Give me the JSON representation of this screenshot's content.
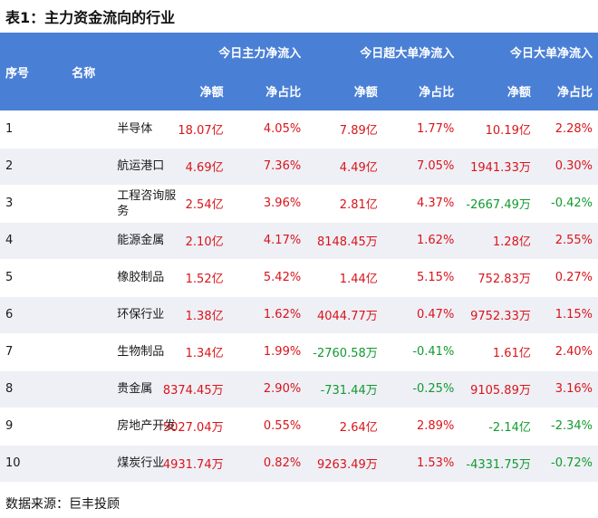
{
  "title": "表1：主力资金流向的行业",
  "header": {
    "idx": "序号",
    "name": "名称",
    "groups": [
      "今日主力净流入",
      "今日超大单净流入",
      "今日大单净流入"
    ],
    "sub_amount": "净额",
    "sub_ratio": "净占比"
  },
  "rows": [
    {
      "idx": "1",
      "name": "半导体",
      "main_amt": "18.07亿",
      "main_pct": "4.05%",
      "xl_amt": "7.89亿",
      "xl_pct": "1.77%",
      "l_amt": "10.19亿",
      "l_pct": "2.28%"
    },
    {
      "idx": "2",
      "name": "航运港口",
      "main_amt": "4.69亿",
      "main_pct": "7.36%",
      "xl_amt": "4.49亿",
      "xl_pct": "7.05%",
      "l_amt": "1941.33万",
      "l_pct": "0.30%"
    },
    {
      "idx": "3",
      "name": "工程咨询服务",
      "main_amt": "2.54亿",
      "main_pct": "3.96%",
      "xl_amt": "2.81亿",
      "xl_pct": "4.37%",
      "l_amt": "-2667.49万",
      "l_pct": "-0.42%"
    },
    {
      "idx": "4",
      "name": "能源金属",
      "main_amt": "2.10亿",
      "main_pct": "4.17%",
      "xl_amt": "8148.45万",
      "xl_pct": "1.62%",
      "l_amt": "1.28亿",
      "l_pct": "2.55%"
    },
    {
      "idx": "5",
      "name": "橡胶制品",
      "main_amt": "1.52亿",
      "main_pct": "5.42%",
      "xl_amt": "1.44亿",
      "xl_pct": "5.15%",
      "l_amt": "752.83万",
      "l_pct": "0.27%"
    },
    {
      "idx": "6",
      "name": "环保行业",
      "main_amt": "1.38亿",
      "main_pct": "1.62%",
      "xl_amt": "4044.77万",
      "xl_pct": "0.47%",
      "l_amt": "9752.33万",
      "l_pct": "1.15%"
    },
    {
      "idx": "7",
      "name": "生物制品",
      "main_amt": "1.34亿",
      "main_pct": "1.99%",
      "xl_amt": "-2760.58万",
      "xl_pct": "-0.41%",
      "l_amt": "1.61亿",
      "l_pct": "2.40%"
    },
    {
      "idx": "8",
      "name": "贵金属",
      "main_amt": "8374.45万",
      "main_pct": "2.90%",
      "xl_amt": "-731.44万",
      "xl_pct": "-0.25%",
      "l_amt": "9105.89万",
      "l_pct": "3.16%"
    },
    {
      "idx": "9",
      "name": "房地产开发",
      "main_amt": "5027.04万",
      "main_pct": "0.55%",
      "xl_amt": "2.64亿",
      "xl_pct": "2.89%",
      "l_amt": "-2.14亿",
      "l_pct": "-2.34%"
    },
    {
      "idx": "10",
      "name": "煤炭行业",
      "main_amt": "4931.74万",
      "main_pct": "0.82%",
      "xl_amt": "9263.49万",
      "xl_pct": "1.53%",
      "l_amt": "-4331.75万",
      "l_pct": "-0.72%"
    }
  ],
  "source": "数据来源：巨丰投顾",
  "colors": {
    "header_bg": "#4a7fd6",
    "positive": "#d9141a",
    "negative": "#119a2e",
    "stripe": "#eef0f6"
  }
}
